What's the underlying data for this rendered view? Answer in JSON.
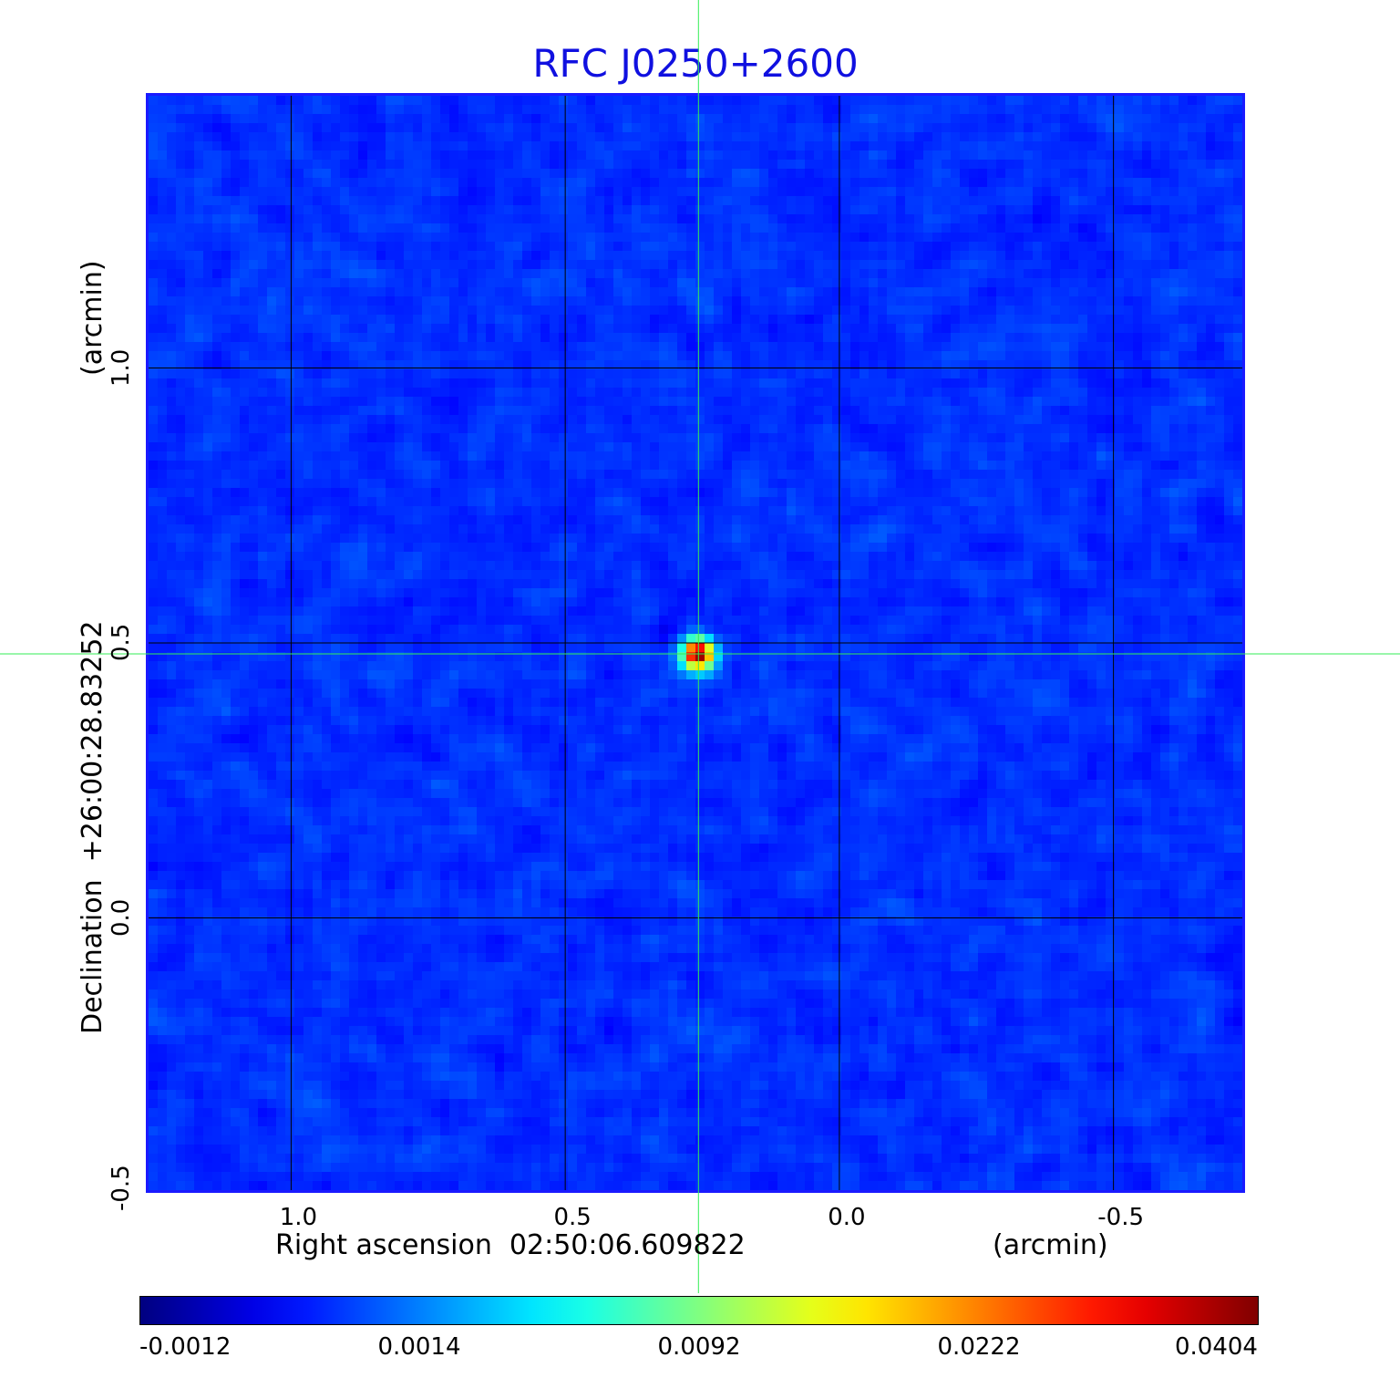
{
  "chart_data": {
    "type": "heatmap",
    "title": "RFC J0250+2600",
    "xlabel": "Right ascension  02:50:06.609822",
    "xunit": "(arcmin)",
    "ylabel": "Declination  +26:00:28.83252",
    "yunit": "(arcmin)",
    "x_ticks": [
      "1.0",
      "0.5",
      "0.0",
      "-0.5"
    ],
    "y_ticks": [
      "-0.5",
      "0.0",
      "0.5",
      "1.0"
    ],
    "x_tick_values": [
      1.0,
      0.5,
      0.0,
      -0.5
    ],
    "y_tick_values": [
      -0.5,
      0.0,
      0.5,
      1.0
    ],
    "xlim": [
      1.265,
      -0.74
    ],
    "ylim": [
      -0.5,
      1.5
    ],
    "grid": true,
    "crosshair": {
      "x": 0.257,
      "y": 0.48
    },
    "peak": {
      "x": 0.257,
      "y": 0.48,
      "value": 0.0404
    },
    "colorbar": {
      "labels": [
        "-0.0012",
        "0.0014",
        "0.0092",
        "0.0222",
        "0.0404"
      ],
      "colormap": "jet"
    }
  }
}
